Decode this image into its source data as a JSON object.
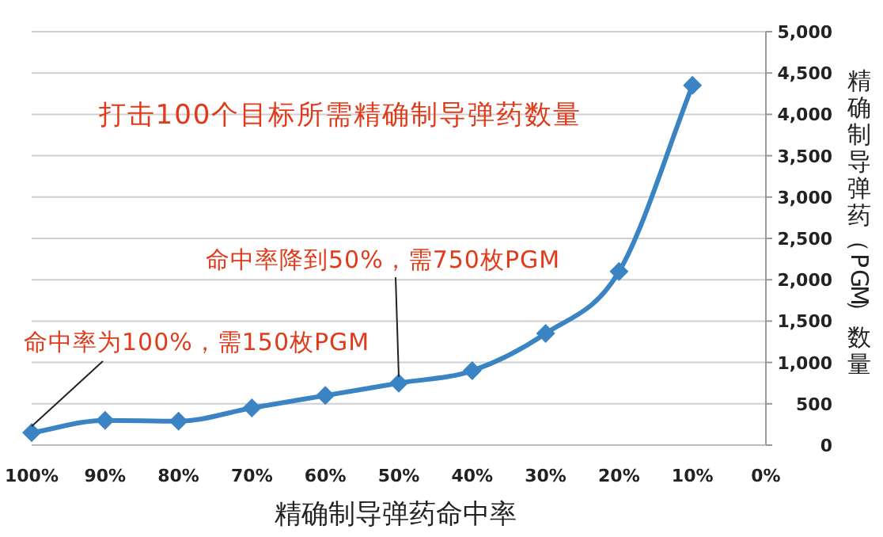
{
  "chart_data": {
    "type": "line",
    "title": "打击100个目标所需精确制导弹药数量",
    "xlabel": "精确制导弹药命中率",
    "ylabel": "精确制导弹药（PGM）数量",
    "categories": [
      "100%",
      "90%",
      "80%",
      "70%",
      "60%",
      "50%",
      "40%",
      "30%",
      "20%",
      "10%",
      "0%"
    ],
    "series": [
      {
        "color": "#3a84c4",
        "values": [
          150,
          300,
          290,
          450,
          600,
          750,
          900,
          1350,
          2100,
          4350,
          null
        ]
      }
    ],
    "ylim": [
      0,
      5000
    ],
    "yticks": [
      {
        "value": 0,
        "label": "0"
      },
      {
        "value": 500,
        "label": "500"
      },
      {
        "value": 1000,
        "label": "1,000"
      },
      {
        "value": 1500,
        "label": "1,500"
      },
      {
        "value": 2000,
        "label": "2,000"
      },
      {
        "value": 2500,
        "label": "2,500"
      },
      {
        "value": 3000,
        "label": "3,000"
      },
      {
        "value": 3500,
        "label": "3,500"
      },
      {
        "value": 4000,
        "label": "4,000"
      },
      {
        "value": 4500,
        "label": "4,500"
      },
      {
        "value": 5000,
        "label": "5,000"
      }
    ],
    "grid": "y",
    "marker": "diamond",
    "line_style": "solid",
    "annotations": [
      {
        "text": "命中率为100%，需150枚PGM",
        "x": "100%",
        "y": 150
      },
      {
        "text": "命中率降到50%，需750枚PGM",
        "x": "50%",
        "y": 750
      }
    ]
  }
}
